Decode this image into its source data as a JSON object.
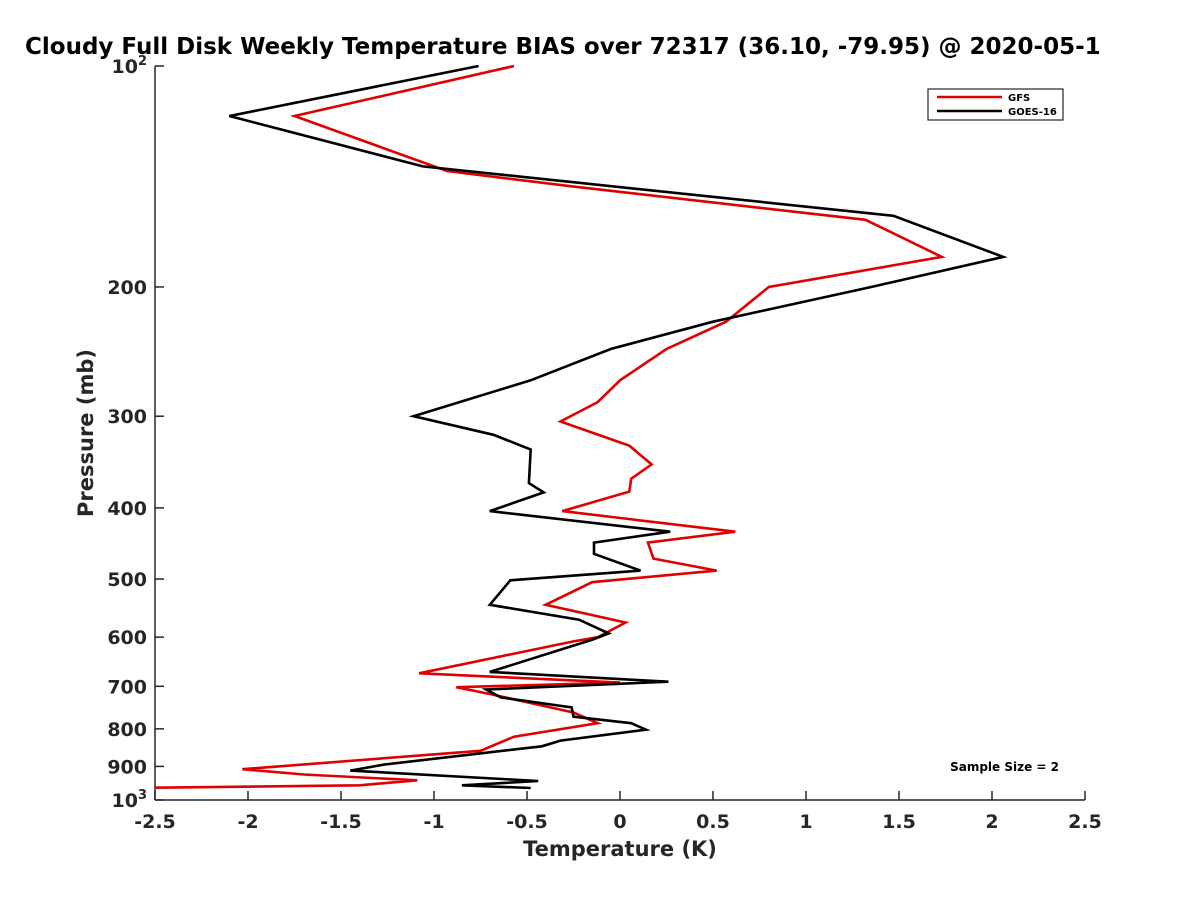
{
  "chart_data": {
    "type": "line",
    "title": "Cloudy Full Disk Weekly Temperature BIAS over 72317 (36.10, -79.95) @ 2020-05-1",
    "xlabel": "Temperature (K)",
    "ylabel": "Pressure (mb)",
    "xlim": [
      -2.5,
      2.5
    ],
    "ylim": [
      100,
      1000
    ],
    "y_scale": "log",
    "y_reversed": true,
    "x_ticks": [
      {
        "value": -2.5,
        "label": "-2.5"
      },
      {
        "value": -2,
        "label": "-2"
      },
      {
        "value": -1.5,
        "label": "-1.5"
      },
      {
        "value": -1,
        "label": "-1"
      },
      {
        "value": -0.5,
        "label": "-0.5"
      },
      {
        "value": 0,
        "label": "0"
      },
      {
        "value": 0.5,
        "label": "0.5"
      },
      {
        "value": 1,
        "label": "1"
      },
      {
        "value": 1.5,
        "label": "1.5"
      },
      {
        "value": 2,
        "label": "2"
      },
      {
        "value": 2.5,
        "label": "2.5"
      }
    ],
    "y_ticks": [
      {
        "value": 100,
        "label": "10",
        "sup": "2"
      },
      {
        "value": 200,
        "label": "200",
        "sup": ""
      },
      {
        "value": 300,
        "label": "300",
        "sup": ""
      },
      {
        "value": 400,
        "label": "400",
        "sup": ""
      },
      {
        "value": 500,
        "label": "500",
        "sup": ""
      },
      {
        "value": 600,
        "label": "600",
        "sup": ""
      },
      {
        "value": 700,
        "label": "700",
        "sup": ""
      },
      {
        "value": 800,
        "label": "800",
        "sup": ""
      },
      {
        "value": 900,
        "label": "900",
        "sup": ""
      },
      {
        "value": 1000,
        "label": "10",
        "sup": "3"
      }
    ],
    "grid": false,
    "legend_position": "top-right",
    "annotation": "Sample Size = 2",
    "series": [
      {
        "name": "GFS",
        "color": "#e00000",
        "points": [
          {
            "t": -0.57,
            "p": 100
          },
          {
            "t": -1.75,
            "p": 117
          },
          {
            "t": -0.93,
            "p": 139
          },
          {
            "t": -0.25,
            "p": 146
          },
          {
            "t": 1.32,
            "p": 162
          },
          {
            "t": 1.73,
            "p": 182
          },
          {
            "t": 0.8,
            "p": 200
          },
          {
            "t": 0.57,
            "p": 223
          },
          {
            "t": 0.25,
            "p": 243
          },
          {
            "t": 0.0,
            "p": 268
          },
          {
            "t": -0.12,
            "p": 287
          },
          {
            "t": -0.32,
            "p": 305
          },
          {
            "t": 0.05,
            "p": 329
          },
          {
            "t": 0.17,
            "p": 349
          },
          {
            "t": 0.06,
            "p": 365
          },
          {
            "t": 0.05,
            "p": 380
          },
          {
            "t": -0.31,
            "p": 404
          },
          {
            "t": 0.62,
            "p": 431
          },
          {
            "t": 0.15,
            "p": 446
          },
          {
            "t": 0.18,
            "p": 469
          },
          {
            "t": 0.52,
            "p": 487
          },
          {
            "t": -0.15,
            "p": 505
          },
          {
            "t": -0.4,
            "p": 542
          },
          {
            "t": 0.03,
            "p": 573
          },
          {
            "t": -0.12,
            "p": 600
          },
          {
            "t": -0.25,
            "p": 608
          },
          {
            "t": -1.08,
            "p": 672
          },
          {
            "t": 0.0,
            "p": 692
          },
          {
            "t": -0.88,
            "p": 702
          },
          {
            "t": -0.7,
            "p": 717
          },
          {
            "t": -0.25,
            "p": 760
          },
          {
            "t": -0.12,
            "p": 786
          },
          {
            "t": -0.57,
            "p": 820
          },
          {
            "t": -0.75,
            "p": 857
          },
          {
            "t": -2.03,
            "p": 908
          },
          {
            "t": -1.7,
            "p": 923
          },
          {
            "t": -1.09,
            "p": 940
          },
          {
            "t": -1.4,
            "p": 955
          },
          {
            "t": -2.5,
            "p": 962
          }
        ]
      },
      {
        "name": "GOES-16",
        "color": "#000000",
        "points": [
          {
            "t": -0.76,
            "p": 100
          },
          {
            "t": -2.1,
            "p": 117
          },
          {
            "t": -1.06,
            "p": 137
          },
          {
            "t": 1.47,
            "p": 160
          },
          {
            "t": 2.06,
            "p": 182
          },
          {
            "t": 1.35,
            "p": 200
          },
          {
            "t": 0.5,
            "p": 223
          },
          {
            "t": -0.05,
            "p": 243
          },
          {
            "t": -0.48,
            "p": 268
          },
          {
            "t": -1.11,
            "p": 300
          },
          {
            "t": -0.68,
            "p": 318
          },
          {
            "t": -0.48,
            "p": 333
          },
          {
            "t": -0.49,
            "p": 370
          },
          {
            "t": -0.41,
            "p": 381
          },
          {
            "t": -0.7,
            "p": 404
          },
          {
            "t": 0.27,
            "p": 431
          },
          {
            "t": -0.14,
            "p": 446
          },
          {
            "t": -0.14,
            "p": 462
          },
          {
            "t": 0.11,
            "p": 487
          },
          {
            "t": -0.59,
            "p": 502
          },
          {
            "t": -0.7,
            "p": 542
          },
          {
            "t": -0.22,
            "p": 568
          },
          {
            "t": -0.06,
            "p": 593
          },
          {
            "t": -0.15,
            "p": 605
          },
          {
            "t": -0.7,
            "p": 669
          },
          {
            "t": 0.26,
            "p": 690
          },
          {
            "t": -0.72,
            "p": 707
          },
          {
            "t": -0.64,
            "p": 725
          },
          {
            "t": -0.26,
            "p": 748
          },
          {
            "t": -0.25,
            "p": 770
          },
          {
            "t": 0.06,
            "p": 786
          },
          {
            "t": 0.14,
            "p": 802
          },
          {
            "t": -0.32,
            "p": 830
          },
          {
            "t": -0.42,
            "p": 845
          },
          {
            "t": -1.27,
            "p": 895
          },
          {
            "t": -1.45,
            "p": 912
          },
          {
            "t": -0.44,
            "p": 942
          },
          {
            "t": -0.85,
            "p": 955
          },
          {
            "t": -0.48,
            "p": 963
          }
        ]
      }
    ]
  }
}
